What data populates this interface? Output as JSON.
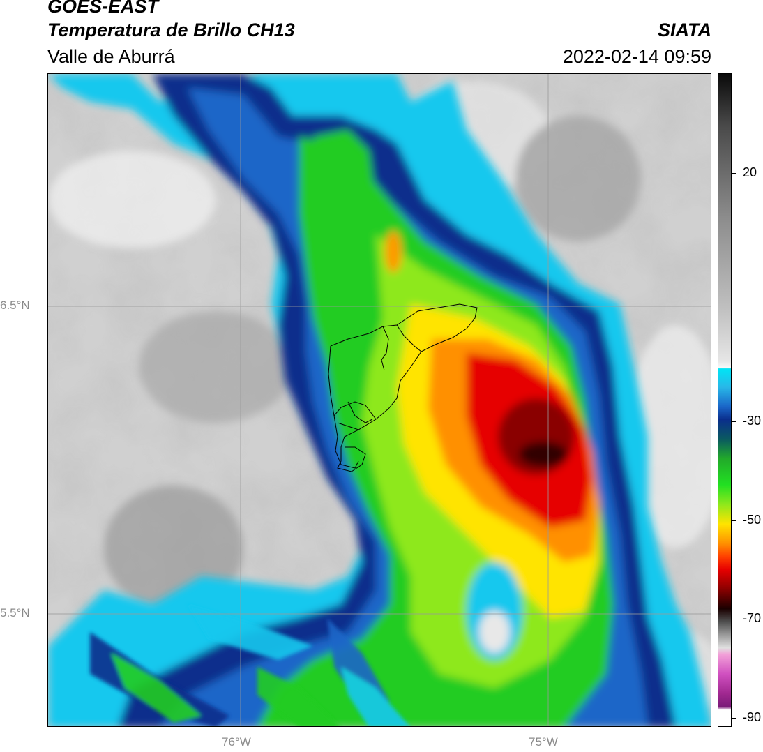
{
  "header": {
    "satellite": "GOES-EAST",
    "product": "Temperatura de Brillo CH13",
    "region": "Valle de Aburrá",
    "organization": "SIATA",
    "timestamp": "2022-02-14 09:59"
  },
  "map": {
    "lat_labels": [
      "6.5°N",
      "5.5°N"
    ],
    "lon_labels": [
      "76°W",
      "75°W"
    ],
    "grid": true,
    "boundary": "Valle de Aburrá municipalities outline"
  },
  "colorbar": {
    "tick_labels": [
      "20",
      "-30",
      "-50",
      "-70",
      "-90"
    ],
    "range": [
      -90,
      35
    ],
    "colors": {
      "warm_gray_light": "#f2f2f2",
      "warm_gray_dark": "#6e6e6e",
      "cyan": "#00e5f5",
      "dark_blue": "#00237a",
      "green": "#18d21a",
      "yellow": "#ffe600",
      "orange": "#ff8a00",
      "red": "#e00000",
      "dark_red": "#3a0000",
      "magenta": "#c832b4"
    }
  }
}
